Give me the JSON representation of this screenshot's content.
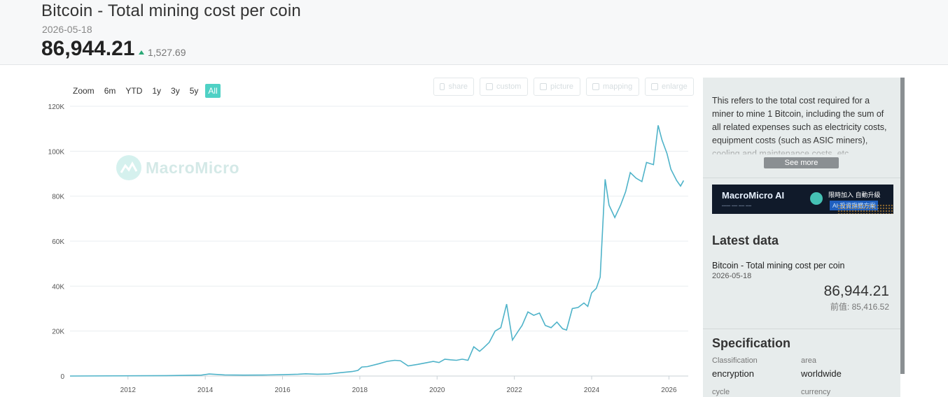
{
  "header": {
    "title": "Bitcoin - Total mining cost per coin",
    "date": "2026-05-18",
    "value": "86,944.21",
    "change": "1,527.69"
  },
  "range_selector": {
    "zoom_label": "Zoom",
    "options": [
      "6m",
      "YTD",
      "1y",
      "3y",
      "5y",
      "All"
    ],
    "active": "All"
  },
  "toolbar": {
    "share": "share",
    "custom": "custom",
    "picture": "picture",
    "mapping": "mapping",
    "enlarge": "enlarge"
  },
  "watermark": "MacroMicro",
  "chart_data": {
    "type": "line",
    "title": "",
    "xlabel": "",
    "ylabel": "",
    "x_ticks": [
      "2012",
      "2014",
      "2016",
      "2018",
      "2020",
      "2022",
      "2024",
      "2026"
    ],
    "y_ticks": [
      "0",
      "20K",
      "40K",
      "60K",
      "80K",
      "100K",
      "120K"
    ],
    "ylim": [
      0,
      120000
    ],
    "xlim": [
      2010.5,
      2026.5
    ],
    "grid": true,
    "line_color": "#4fb3c9",
    "series": [
      {
        "name": "",
        "x": [
          2010.5,
          2013.0,
          2013.9,
          2014.1,
          2014.5,
          2015.0,
          2015.5,
          2016.0,
          2016.4,
          2016.6,
          2016.9,
          2017.2,
          2017.5,
          2017.8,
          2017.95,
          2018.05,
          2018.2,
          2018.5,
          2018.7,
          2018.9,
          2019.05,
          2019.25,
          2019.5,
          2019.75,
          2019.9,
          2020.05,
          2020.2,
          2020.35,
          2020.5,
          2020.65,
          2020.8,
          2020.95,
          2021.1,
          2021.2,
          2021.35,
          2021.5,
          2021.65,
          2021.8,
          2021.95,
          2022.1,
          2022.2,
          2022.35,
          2022.5,
          2022.65,
          2022.8,
          2022.95,
          2023.1,
          2023.25,
          2023.35,
          2023.5,
          2023.65,
          2023.8,
          2023.9,
          2024.0,
          2024.12,
          2024.22,
          2024.35,
          2024.45,
          2024.6,
          2024.75,
          2024.88,
          2025.0,
          2025.15,
          2025.3,
          2025.42,
          2025.6,
          2025.72,
          2025.82,
          2025.95,
          2026.05,
          2026.2,
          2026.3,
          2026.38
        ],
        "values": [
          0,
          200,
          400,
          900,
          500,
          400,
          450,
          600,
          800,
          1000,
          800,
          900,
          1500,
          2000,
          2500,
          4000,
          4200,
          5500,
          6500,
          7000,
          6800,
          4500,
          5200,
          6000,
          6500,
          6000,
          7500,
          7200,
          7000,
          7500,
          7000,
          13000,
          11000,
          12500,
          15000,
          20000,
          21500,
          32000,
          16000,
          20000,
          22500,
          28500,
          27000,
          28000,
          22500,
          21500,
          24000,
          21000,
          20500,
          30000,
          30500,
          32500,
          31000,
          37000,
          39000,
          44000,
          87500,
          76000,
          70500,
          76000,
          82000,
          90500,
          88000,
          86500,
          95000,
          94000,
          111500,
          105000,
          99000,
          92000,
          87000,
          84500,
          86944
        ]
      }
    ]
  },
  "panel": {
    "description": "This refers to the total cost required for a miner to mine 1 Bitcoin, including the sum of all related expenses such as electricity costs, equipment costs (such as ASIC miners), cooling and maintenance costs, etc.",
    "see_more": "See more",
    "banner": {
      "title": "MacroMicro AI",
      "right_line1": "限時加入 自動升級",
      "right_line2": "AI 投資旗艦方案"
    },
    "latest_data_title": "Latest data",
    "latest_name": "Bitcoin - Total mining cost per coin",
    "latest_date": "2026-05-18",
    "latest_value": "86,944.21",
    "previous_label": "前值:",
    "previous_value": "85,416.52",
    "specification_title": "Specification",
    "spec": {
      "classification_label": "Classification",
      "classification_value": "encryption",
      "area_label": "area",
      "area_value": "worldwide",
      "cycle_label": "cycle",
      "currency_label": "currency"
    }
  }
}
